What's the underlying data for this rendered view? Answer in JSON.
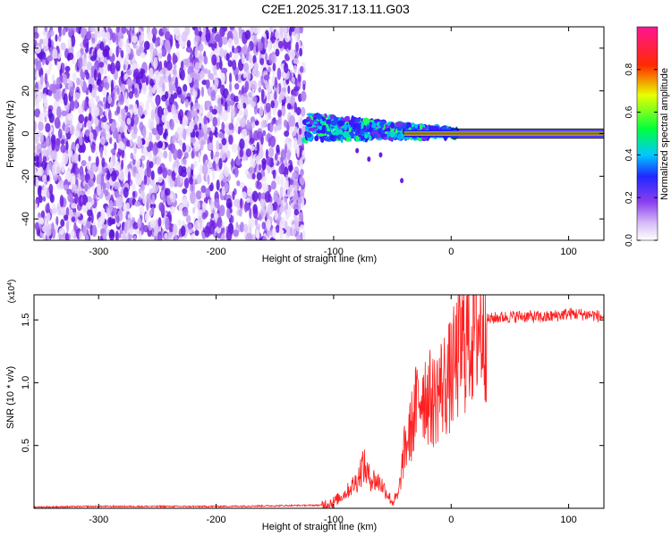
{
  "title": "C2E1.2025.317.13.11.G03",
  "chart_data": [
    {
      "type": "heatmap",
      "name": "spectrogram",
      "xlabel": "Height of straight line (km)",
      "ylabel": "Frequency (Hz)",
      "xlim": [
        -355,
        130
      ],
      "ylim": [
        -50,
        50
      ],
      "x_ticks": [
        -300,
        -200,
        -100,
        0,
        100
      ],
      "y_ticks": [
        -40,
        -20,
        0,
        20,
        40
      ],
      "colorbar": {
        "label": "Normalized spectral amplitude",
        "range": [
          0.0,
          1.0
        ],
        "ticks": [
          0.0,
          0.2,
          0.4,
          0.6,
          0.8
        ],
        "tick_labels": [
          "0.0",
          "0.2",
          "0.4",
          "0.6",
          "0.8"
        ],
        "colors": [
          "#ffffff",
          "#c9a8f5",
          "#7a2ee8",
          "#2d1aff",
          "#00c8ff",
          "#00ff40",
          "#fff000",
          "#ff2a00",
          "#ff1493"
        ]
      },
      "regions": [
        {
          "kind": "noise",
          "x_range": [
            -355,
            -125
          ],
          "y_range": [
            -50,
            50
          ],
          "amplitude": 0.1
        },
        {
          "kind": "signal",
          "x_range": [
            -125,
            5
          ],
          "center_freq_start": 3,
          "center_freq_end": 0,
          "amplitude": 0.45
        },
        {
          "kind": "carrier",
          "x_range": [
            -40,
            130
          ],
          "center_freq": 0,
          "amplitude": 0.9
        }
      ]
    },
    {
      "type": "line",
      "name": "snr",
      "xlabel": "Height of straight line (km)",
      "ylabel": "SNR (10 * v/v)",
      "scale_note": "(x10",
      "scale_exp": "4",
      "xlim": [
        -355,
        130
      ],
      "ylim": [
        0,
        1.7
      ],
      "x_ticks": [
        -300,
        -200,
        -100,
        0,
        100
      ],
      "y_ticks": [
        0.5,
        1.0,
        1.5
      ],
      "y_tick_labels": [
        "0.5",
        "1.0",
        "1.5"
      ],
      "color": "#ff2020",
      "series": [
        {
          "x": [
            -355,
            -300,
            -250,
            -200,
            -150,
            -110,
            -100,
            -90,
            -80,
            -75,
            -70,
            -60,
            -50,
            -45,
            -40,
            -35,
            -30,
            -25,
            -20,
            -15,
            -10,
            -5,
            0,
            5,
            10,
            20,
            30,
            40,
            60,
            80,
            100,
            120,
            130
          ],
          "y": [
            0.01,
            0.015,
            0.015,
            0.015,
            0.02,
            0.025,
            0.05,
            0.12,
            0.22,
            0.35,
            0.25,
            0.2,
            0.05,
            0.1,
            0.45,
            0.6,
            0.8,
            0.95,
            0.9,
            0.85,
            0.95,
            1.0,
            1.05,
            1.2,
            1.3,
            1.45,
            1.5,
            1.52,
            1.53,
            1.52,
            1.55,
            1.54,
            1.52
          ]
        }
      ]
    }
  ]
}
